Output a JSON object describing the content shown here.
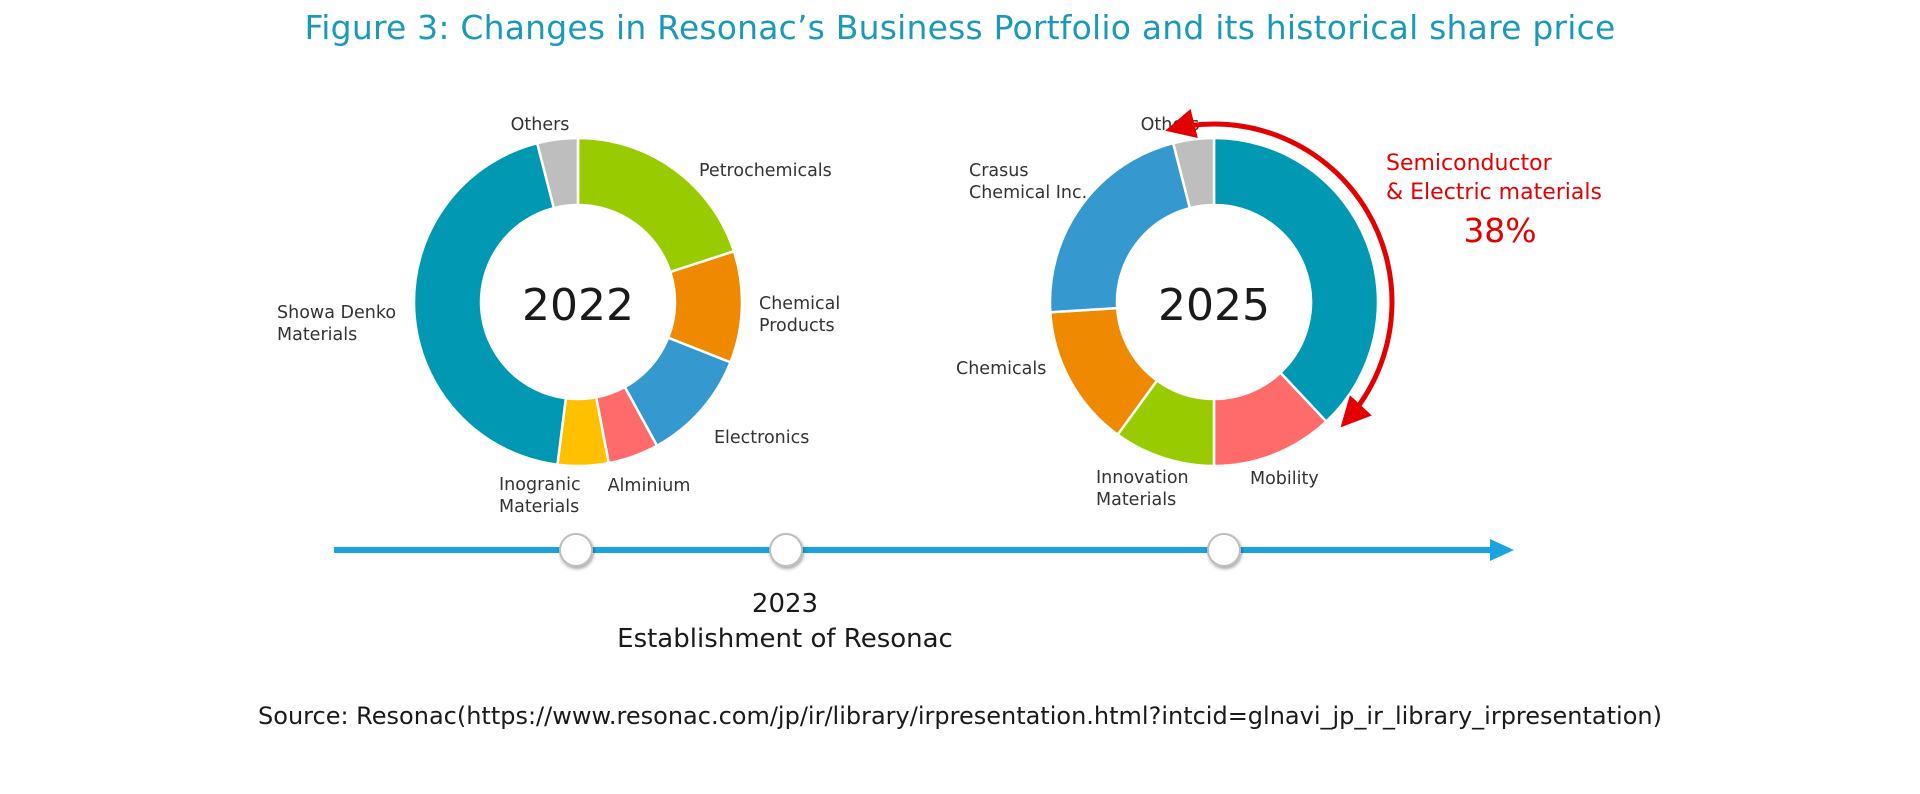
{
  "figure": {
    "title": "Figure 3: Changes in Resonac’s Business Portfolio and its historical share price",
    "source": "Source: Resonac(https://www.resonac.com/jp/ir/library/irpresentation.html?intcid=glnavi_jp_ir_library_irpresentation)"
  },
  "chart_data": [
    {
      "type": "pie",
      "variant": "donut",
      "center_label": "2022",
      "categories": [
        "Petrochemicals",
        "Chemical Products",
        "Electronics",
        "Alminium",
        "Inogranic Materials",
        "Showa Denko Materials",
        "Others"
      ],
      "label_lines": [
        [
          "Petrochemicals"
        ],
        [
          "Chemical",
          "Products"
        ],
        [
          "Electronics"
        ],
        [
          "Alminium"
        ],
        [
          "Inogranic",
          "Materials"
        ],
        [
          "Showa Denko",
          "Materials"
        ],
        [
          "Others"
        ]
      ],
      "values": [
        20,
        11,
        11,
        5,
        5,
        44,
        4
      ],
      "colors": [
        "#99cc00",
        "#ef8a00",
        "#3599cf",
        "#ff6b6b",
        "#ffc000",
        "#0198b3",
        "#bebebe"
      ],
      "start_angle_deg": 0,
      "direction": "clockwise"
    },
    {
      "type": "pie",
      "variant": "donut",
      "center_label": "2025",
      "categories": [
        "Semiconductor & Electric materials",
        "Mobility",
        "Innovation Materials",
        "Chemicals",
        "Crasus Chemical Inc.",
        "Others"
      ],
      "label_lines": [
        [],
        [
          "Mobility"
        ],
        [
          "Innovation",
          "Materials"
        ],
        [
          "Chemicals"
        ],
        [
          "Crasus",
          "Chemical Inc."
        ],
        [
          "Others"
        ]
      ],
      "values": [
        38,
        12,
        10,
        14,
        22,
        4
      ],
      "colors": [
        "#0198b3",
        "#ff6b6b",
        "#99cc00",
        "#ef8a00",
        "#3599cf",
        "#bebebe"
      ],
      "start_angle_deg": 0,
      "direction": "clockwise",
      "annotation": {
        "lines": [
          "Semiconductor",
          "& Electric materials"
        ],
        "value": "38%",
        "color": "#e30000"
      }
    }
  ],
  "timeline": {
    "color": "#1aa3e0",
    "milestone": {
      "year": "2023",
      "label": "Establishment of Resonac"
    }
  }
}
